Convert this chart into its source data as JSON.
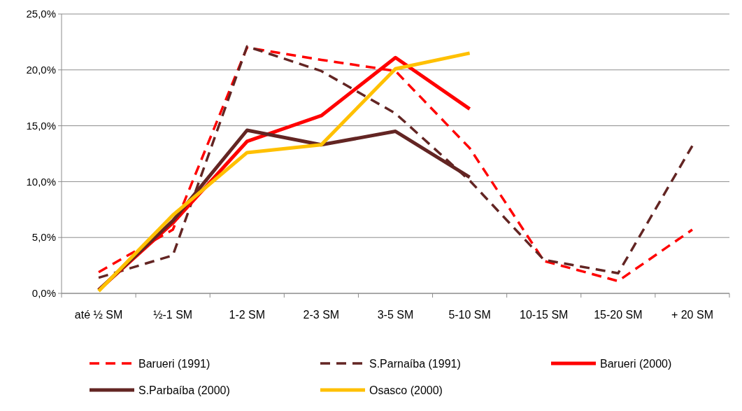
{
  "chart_data": {
    "type": "line",
    "categories": [
      "até ½ SM",
      "½-1 SM",
      "1-2 SM",
      "2-3 SM",
      "3-5 SM",
      "5-10 SM",
      "10-15 SM",
      "15-20 SM",
      "+ 20 SM"
    ],
    "series": [
      {
        "name": "Barueri (1991)",
        "color": "#ff0000",
        "line_style": "dashed",
        "values": [
          1.9,
          5.7,
          22.0,
          20.9,
          19.9,
          13.0,
          2.9,
          1.1,
          5.7
        ]
      },
      {
        "name": "S.Parnaíba (1991)",
        "color": "#632523",
        "line_style": "dashed",
        "values": [
          1.4,
          3.4,
          22.1,
          19.9,
          16.1,
          10.1,
          3.0,
          1.8,
          13.2
        ]
      },
      {
        "name": "Barueri (2000)",
        "color": "#ff0000",
        "line_style": "solid",
        "values": [
          0.3,
          6.3,
          13.6,
          15.9,
          21.1,
          16.5,
          null,
          null,
          null
        ]
      },
      {
        "name": "S.Parbaíba (2000)",
        "color": "#632523",
        "line_style": "solid",
        "values": [
          0.3,
          6.5,
          14.6,
          13.3,
          14.5,
          10.4,
          null,
          null,
          null
        ]
      },
      {
        "name": "Osasco (2000)",
        "color": "#ffc000",
        "line_style": "solid",
        "values": [
          0.2,
          7.0,
          12.6,
          13.3,
          20.1,
          21.5,
          null,
          null,
          null
        ]
      }
    ],
    "ylim": [
      0,
      25
    ],
    "yticks": [
      {
        "value": 0,
        "label": "0,0%"
      },
      {
        "value": 5,
        "label": "5,0%"
      },
      {
        "value": 10,
        "label": "10,0%"
      },
      {
        "value": 15,
        "label": "15,0%"
      },
      {
        "value": 20,
        "label": "20,0%"
      },
      {
        "value": 25,
        "label": "25,0%"
      }
    ],
    "grid": "y",
    "legend": "bottom",
    "marker": "none"
  }
}
